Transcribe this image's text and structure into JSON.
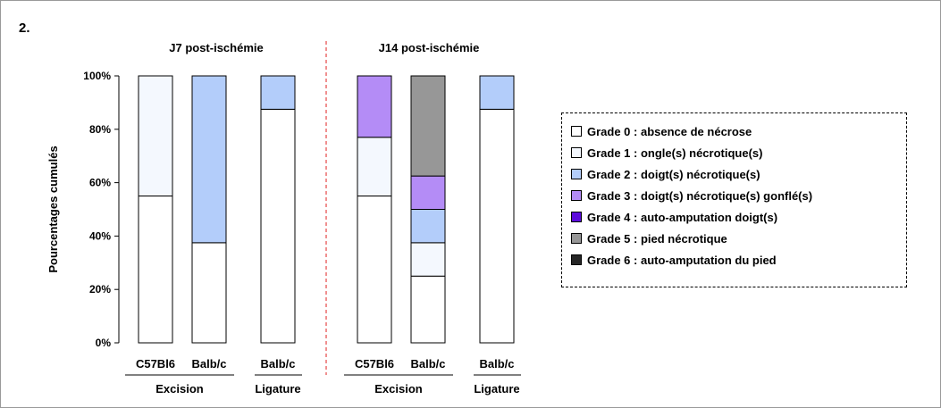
{
  "figure_label": "2.",
  "legend": {
    "items": [
      {
        "label": "Grade 0 : absence de nécrose",
        "color": "#ffffff"
      },
      {
        "label": "Grade 1 : ongle(s) nécrotique(s)",
        "color": "#f4f8fe"
      },
      {
        "label": "Grade 2 : doigt(s) nécrotique(s)",
        "color": "#b3cdfa"
      },
      {
        "label": "Grade 3 : doigt(s) nécrotique(s) gonflé(s)",
        "color": "#b48cf6"
      },
      {
        "label": "Grade 4 : auto-amputation doigt(s)",
        "color": "#5c0bdc"
      },
      {
        "label": "Grade 5 : pied nécrotique",
        "color": "#979797"
      },
      {
        "label": "Grade 6 : auto-amputation du pied",
        "color": "#262626"
      }
    ]
  },
  "chart_data": {
    "type": "bar",
    "stacked": true,
    "ylabel": "Pourcentages cumulés",
    "ylim": [
      0,
      100
    ],
    "yticks": [
      "0%",
      "20%",
      "40%",
      "60%",
      "80%",
      "100%"
    ],
    "panels": [
      {
        "title": "J7 post-ischémie",
        "groups": [
          {
            "label": "Excision",
            "bars": [
              "C57Bl6",
              "Balb/c"
            ]
          },
          {
            "label": "Ligature",
            "bars": [
              "Balb/c"
            ]
          }
        ]
      },
      {
        "title": "J14 post-ischémie",
        "groups": [
          {
            "label": "Excision",
            "bars": [
              "C57Bl6",
              "Balb/c"
            ]
          },
          {
            "label": "Ligature",
            "bars": [
              "Balb/c"
            ]
          }
        ]
      }
    ],
    "bars": [
      {
        "label": "C57Bl6",
        "panel": "J7 post-ischémie",
        "group": "Excision",
        "segments": [
          55,
          45,
          0,
          0,
          0,
          0,
          0
        ]
      },
      {
        "label": "Balb/c",
        "panel": "J7 post-ischémie",
        "group": "Excision",
        "segments": [
          37.5,
          0,
          62.5,
          0,
          0,
          0,
          0
        ]
      },
      {
        "label": "Balb/c",
        "panel": "J7 post-ischémie",
        "group": "Ligature",
        "segments": [
          87.5,
          0,
          12.5,
          0,
          0,
          0,
          0
        ]
      },
      {
        "label": "C57Bl6",
        "panel": "J14 post-ischémie",
        "group": "Excision",
        "segments": [
          55,
          22,
          0,
          23,
          0,
          0,
          0
        ]
      },
      {
        "label": "Balb/c",
        "panel": "J14 post-ischémie",
        "group": "Excision",
        "segments": [
          25,
          12.5,
          12.5,
          12.5,
          0,
          37.5,
          0
        ]
      },
      {
        "label": "Balb/c",
        "panel": "J14 post-ischémie",
        "group": "Ligature",
        "segments": [
          87.5,
          0,
          12.5,
          0,
          0,
          0,
          0
        ]
      }
    ],
    "series": [
      "Grade 0 : absence de nécrose",
      "Grade 1 : ongle(s) nécrotique(s)",
      "Grade 2 : doigt(s) nécrotique(s)",
      "Grade 3 : doigt(s) nécrotique(s) gonflé(s)",
      "Grade 4 : auto-amputation doigt(s)",
      "Grade 5 : pied nécrotique",
      "Grade 6 : auto-amputation du pied"
    ],
    "legend_position": "right",
    "grid": false
  }
}
